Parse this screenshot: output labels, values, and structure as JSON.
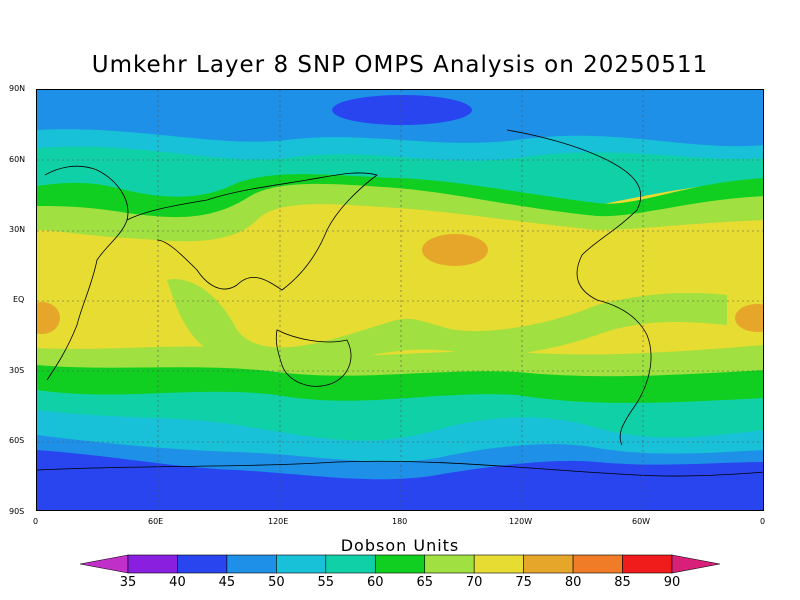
{
  "title": "Umkehr Layer 8 SNP OMPS Analysis on 20250511",
  "colorbar": {
    "title": "Dobson Units",
    "levels": [
      "35",
      "40",
      "45",
      "50",
      "55",
      "60",
      "65",
      "70",
      "75",
      "80",
      "85",
      "90"
    ],
    "colors": [
      "#c030c8",
      "#8a1fe0",
      "#2845f0",
      "#1e90e8",
      "#18c0d8",
      "#10d0a8",
      "#10cf20",
      "#a0e040",
      "#e6dc32",
      "#e6a62a",
      "#f07c28",
      "#f01c1c",
      "#d8207a"
    ]
  },
  "axes": {
    "lat_labels": [
      "90N",
      "60N",
      "30N",
      "EQ",
      "30S",
      "60S",
      "90S"
    ],
    "lon_labels": [
      "0",
      "60E",
      "120E",
      "180",
      "120W",
      "60W",
      "0"
    ]
  },
  "map": {
    "projection": "equirectangular",
    "lon_range": [
      0,
      360
    ],
    "lat_range": [
      -90,
      90
    ],
    "variable": "ozone",
    "units": "Dobson Units"
  }
}
